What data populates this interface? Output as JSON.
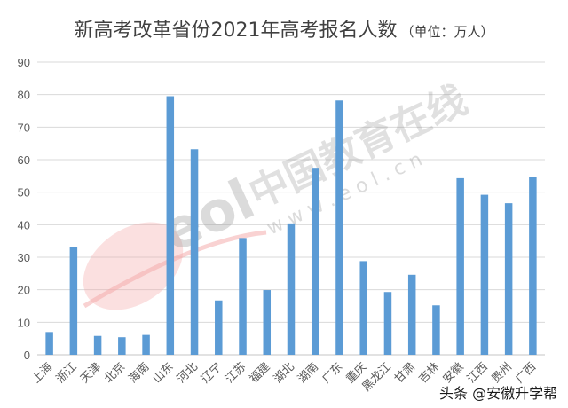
{
  "title": "新高考改革省份2021年高考报名人数",
  "unit_label": "（单位：万人）",
  "watermarks": {
    "brand_cn": "中国教育在线",
    "brand_url": "w w w . e o l . c n",
    "logo_text": "eol",
    "credit": "头条 @安徽升学帮"
  },
  "colors": {
    "bar": "#5B9BD5",
    "grid": "#D9D9D9",
    "axis_text": "#595959",
    "title": "#404040"
  },
  "chart_data": {
    "type": "bar",
    "title": "新高考改革省份2021年高考报名人数（单位：万人）",
    "xlabel": "",
    "ylabel": "万人",
    "ylim": [
      0,
      90
    ],
    "yticks": [
      0,
      10,
      20,
      30,
      40,
      50,
      60,
      70,
      80,
      90
    ],
    "grid": true,
    "legend": "none",
    "categories": [
      "上海",
      "浙江",
      "天津",
      "北京",
      "海南",
      "山东",
      "河北",
      "辽宁",
      "江苏",
      "福建",
      "湖北",
      "湖南",
      "广东",
      "重庆",
      "黑龙江",
      "甘肃",
      "吉林",
      "安徽",
      "江西",
      "贵州",
      "广西"
    ],
    "values": [
      7.0,
      33.2,
      5.8,
      5.4,
      6.1,
      79.5,
      63.2,
      16.7,
      35.9,
      19.9,
      40.4,
      57.5,
      78.2,
      28.8,
      19.3,
      24.6,
      15.2,
      54.3,
      49.2,
      46.6,
      54.8
    ]
  }
}
